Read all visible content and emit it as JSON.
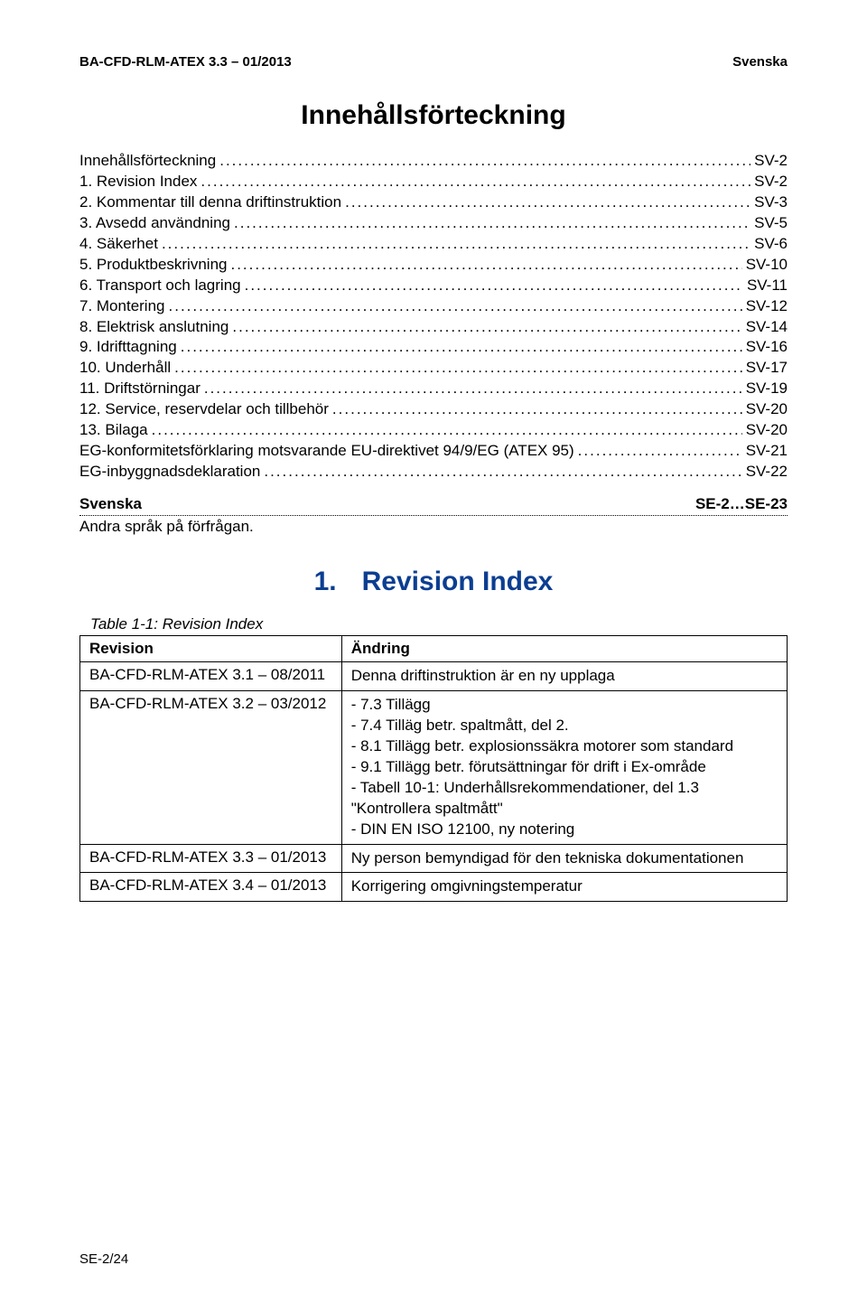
{
  "header": {
    "doc_id": "BA-CFD-RLM-ATEX 3.3 – 01/2013",
    "lang": "Svenska"
  },
  "main_title": "Innehållsförteckning",
  "toc": [
    {
      "label": "Innehållsförteckning",
      "page": "SV-2"
    },
    {
      "label": "1. Revision Index",
      "page": "SV-2"
    },
    {
      "label": "2. Kommentar till denna driftinstruktion",
      "page": "SV-3"
    },
    {
      "label": "3. Avsedd användning",
      "page": "SV-5"
    },
    {
      "label": "4. Säkerhet",
      "page": "SV-6"
    },
    {
      "label": "5. Produktbeskrivning",
      "page": "SV-10"
    },
    {
      "label": "6. Transport och lagring",
      "page": "SV-11"
    },
    {
      "label": "7. Montering",
      "page": "SV-12"
    },
    {
      "label": "8. Elektrisk anslutning",
      "page": "SV-14"
    },
    {
      "label": "9. Idrifttagning",
      "page": "SV-16"
    },
    {
      "label": "10. Underhåll",
      "page": "SV-17"
    },
    {
      "label": "11. Driftstörningar",
      "page": "SV-19"
    },
    {
      "label": "12. Service, reservdelar och tillbehör",
      "page": "SV-20"
    },
    {
      "label": "13. Bilaga",
      "page": "SV-20"
    },
    {
      "label": "EG-konformitetsförklaring motsvarande EU-direktivet 94/9/EG (ATEX 95)",
      "page": "SV-21"
    },
    {
      "label": "EG-inbyggnadsdeklaration",
      "page": "SV-22"
    }
  ],
  "lang_block": {
    "left": "Svenska",
    "right": "SE-2…SE-23",
    "note": "Andra språk på förfrågan."
  },
  "section": {
    "number": "1.",
    "title": "Revision Index"
  },
  "table": {
    "caption": "Table 1-1: Revision Index",
    "columns": [
      "Revision",
      "Ändring"
    ],
    "col_widths": [
      "37%",
      "63%"
    ],
    "rows": [
      {
        "rev": "BA-CFD-RLM-ATEX 3.1 – 08/2011",
        "change": [
          "Denna driftinstruktion är en ny upplaga"
        ]
      },
      {
        "rev": "BA-CFD-RLM-ATEX 3.2 – 03/2012",
        "change": [
          "- 7.3 Tillägg",
          "- 7.4 Tilläg betr. spaltmått, del 2.",
          "- 8.1 Tillägg betr. explosionssäkra motorer som standard",
          "- 9.1 Tillägg betr. förutsättningar för drift i Ex-område",
          "- Tabell 10-1: Underhållsrekommendationer, del 1.3 \"Kontrollera spaltmått\"",
          "- DIN EN ISO 12100, ny notering"
        ]
      },
      {
        "rev": "BA-CFD-RLM-ATEX 3.3 – 01/2013",
        "change": [
          "Ny person bemyndigad för den tekniska dokumentationen"
        ]
      },
      {
        "rev": "BA-CFD-RLM-ATEX 3.4 – 01/2013",
        "change": [
          "Korrigering omgivningstemperatur"
        ]
      }
    ]
  },
  "footer": "SE-2/24",
  "colors": {
    "heading_blue": "#0b3e91",
    "text": "#000000",
    "background": "#ffffff",
    "border": "#000000"
  }
}
